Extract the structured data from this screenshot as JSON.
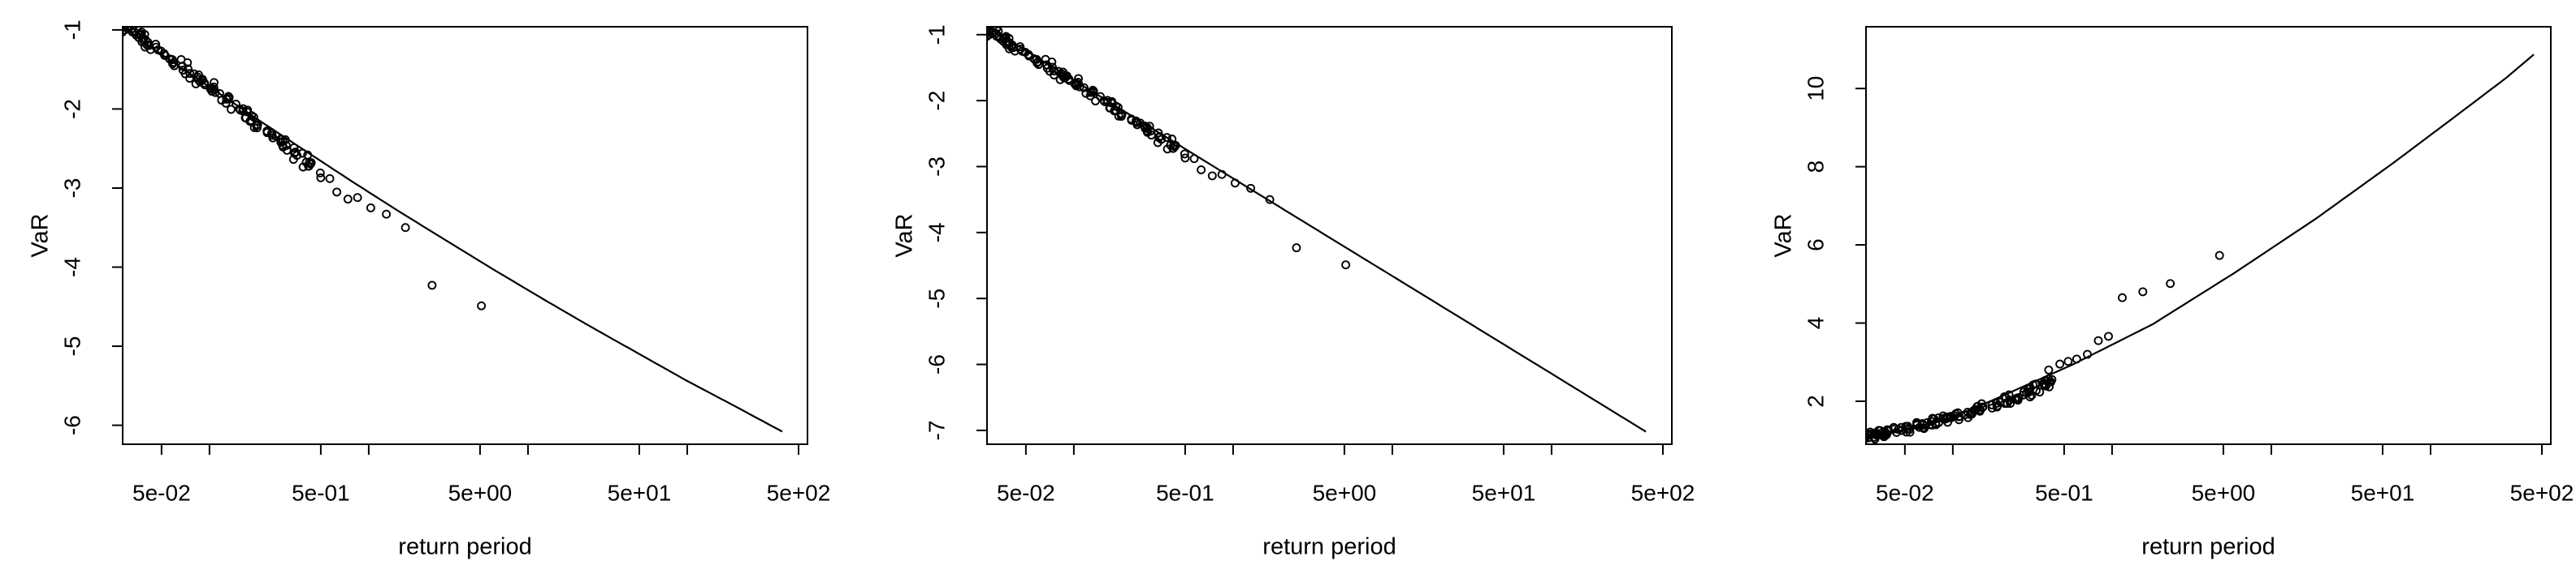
{
  "figure": {
    "background": "#ffffff",
    "foreground": "#000000",
    "description": "Three R base-graphics panels: empirical VaR points with fitted return-level curves versus return period (log scale)"
  },
  "chart_data": [
    {
      "type": "scatter",
      "title": "",
      "xlabel": "return period",
      "ylabel": "VaR",
      "xscale": "log",
      "xlim": [
        0.0285,
        569
      ],
      "xticks": {
        "major_values": [
          0.05,
          0.5,
          5,
          50,
          500
        ],
        "major_labels": [
          "5e-02",
          "5e-01",
          "5e+00",
          "5e+01",
          "5e+02"
        ],
        "minor_values": [
          0.1,
          1,
          10,
          100
        ]
      },
      "ylim": [
        -6.24,
        -0.96
      ],
      "yticks": [
        -1,
        -2,
        -3,
        -4,
        -5,
        -6
      ],
      "grid": false,
      "legend": null,
      "line": [
        [
          0.0284,
          -0.96
        ],
        [
          0.05,
          -1.31
        ],
        [
          0.1,
          -1.72
        ],
        [
          0.2,
          -2.13
        ],
        [
          0.4,
          -2.53
        ],
        [
          0.79,
          -2.92
        ],
        [
          1.59,
          -3.31
        ],
        [
          3.16,
          -3.68
        ],
        [
          6.31,
          -4.05
        ],
        [
          12.6,
          -4.41
        ],
        [
          25.1,
          -4.76
        ],
        [
          50.1,
          -5.1
        ],
        [
          100,
          -5.44
        ],
        [
          200,
          -5.76
        ],
        [
          395,
          -6.08
        ]
      ],
      "points_sparse": [
        [
          0.5,
          -2.87
        ],
        [
          0.57,
          -2.88
        ],
        [
          0.63,
          -3.05
        ],
        [
          0.74,
          -3.14
        ],
        [
          0.85,
          -3.12
        ],
        [
          1.03,
          -3.25
        ],
        [
          1.29,
          -3.33
        ],
        [
          1.7,
          -3.5
        ],
        [
          2.5,
          -4.23
        ],
        [
          5.1,
          -4.49
        ]
      ],
      "points_dense": {
        "anchors": [
          [
            0.0288,
            -0.93
          ],
          [
            0.035,
            -1.05
          ],
          [
            0.045,
            -1.22
          ],
          [
            0.06,
            -1.4
          ],
          [
            0.08,
            -1.58
          ],
          [
            0.1,
            -1.72
          ],
          [
            0.13,
            -1.89
          ],
          [
            0.17,
            -2.06
          ],
          [
            0.22,
            -2.25
          ],
          [
            0.28,
            -2.42
          ],
          [
            0.36,
            -2.6
          ],
          [
            0.46,
            -2.76
          ]
        ],
        "count": 120,
        "jitter_logx": 0.045,
        "jitter_y": 0.05,
        "seed": 7
      }
    },
    {
      "type": "scatter",
      "title": "",
      "xlabel": "return period",
      "ylabel": "VaR",
      "xscale": "log",
      "xlim": [
        0.0285,
        569
      ],
      "xticks": {
        "major_values": [
          0.05,
          0.5,
          5,
          50,
          500
        ],
        "major_labels": [
          "5e-02",
          "5e-01",
          "5e+00",
          "5e+01",
          "5e+02"
        ],
        "minor_values": [
          0.1,
          1,
          10,
          100
        ]
      },
      "ylim": [
        -7.21,
        -0.88
      ],
      "yticks": [
        -1,
        -2,
        -3,
        -4,
        -5,
        -6,
        -7
      ],
      "grid": false,
      "legend": null,
      "line": [
        [
          0.0285,
          -0.88
        ],
        [
          0.1,
          -1.69
        ],
        [
          1,
          -3.18
        ],
        [
          10,
          -4.66
        ],
        [
          100,
          -6.14
        ],
        [
          391,
          -7.02
        ]
      ],
      "points_sparse": [
        [
          0.5,
          -2.87
        ],
        [
          0.57,
          -2.88
        ],
        [
          0.63,
          -3.05
        ],
        [
          0.74,
          -3.14
        ],
        [
          0.85,
          -3.12
        ],
        [
          1.03,
          -3.25
        ],
        [
          1.29,
          -3.33
        ],
        [
          1.7,
          -3.5
        ],
        [
          2.5,
          -4.23
        ],
        [
          5.1,
          -4.49
        ]
      ],
      "points_dense": {
        "anchors": [
          [
            0.0288,
            -0.93
          ],
          [
            0.035,
            -1.05
          ],
          [
            0.045,
            -1.22
          ],
          [
            0.06,
            -1.4
          ],
          [
            0.08,
            -1.58
          ],
          [
            0.1,
            -1.72
          ],
          [
            0.13,
            -1.89
          ],
          [
            0.17,
            -2.06
          ],
          [
            0.22,
            -2.25
          ],
          [
            0.28,
            -2.42
          ],
          [
            0.36,
            -2.6
          ],
          [
            0.46,
            -2.76
          ]
        ],
        "count": 120,
        "jitter_logx": 0.045,
        "jitter_y": 0.05,
        "seed": 7
      }
    },
    {
      "type": "scatter",
      "title": "",
      "xlabel": "return period",
      "ylabel": "VaR",
      "xscale": "log",
      "xlim": [
        0.0285,
        569
      ],
      "xticks": {
        "major_values": [
          0.05,
          0.5,
          5,
          50,
          500
        ],
        "major_labels": [
          "5e-02",
          "5e-01",
          "5e+00",
          "5e+01",
          "5e+02"
        ],
        "minor_values": [
          0.1,
          1,
          10,
          100
        ]
      },
      "ylim": [
        0.9,
        11.58
      ],
      "yticks": [
        2,
        4,
        6,
        8,
        10
      ],
      "grid": false,
      "legend": null,
      "line": [
        [
          0.0285,
          1.02
        ],
        [
          0.05,
          1.28
        ],
        [
          0.09,
          1.52
        ],
        [
          0.17,
          1.99
        ],
        [
          0.56,
          2.93
        ],
        [
          1.8,
          3.97
        ],
        [
          5.8,
          5.27
        ],
        [
          18.9,
          6.66
        ],
        [
          59,
          8.11
        ],
        [
          150,
          9.35
        ],
        [
          300,
          10.28
        ],
        [
          445,
          10.87
        ]
      ],
      "points_sparse": [
        [
          0.4,
          2.8
        ],
        [
          0.47,
          2.95
        ],
        [
          0.53,
          3.02
        ],
        [
          0.6,
          3.08
        ],
        [
          0.7,
          3.2
        ],
        [
          0.82,
          3.55
        ],
        [
          0.95,
          3.66
        ],
        [
          1.16,
          4.65
        ],
        [
          1.56,
          4.8
        ],
        [
          2.32,
          5.01
        ],
        [
          4.73,
          5.73
        ]
      ],
      "points_dense": {
        "anchors": [
          [
            0.0288,
            1.1
          ],
          [
            0.035,
            1.16
          ],
          [
            0.045,
            1.25
          ],
          [
            0.06,
            1.36
          ],
          [
            0.08,
            1.49
          ],
          [
            0.1,
            1.6
          ],
          [
            0.13,
            1.72
          ],
          [
            0.17,
            1.88
          ],
          [
            0.22,
            2.04
          ],
          [
            0.28,
            2.18
          ],
          [
            0.36,
            2.42
          ],
          [
            0.43,
            2.56
          ]
        ],
        "count": 135,
        "jitter_logx": 0.045,
        "jitter_y": 0.09,
        "seed": 7
      }
    }
  ]
}
